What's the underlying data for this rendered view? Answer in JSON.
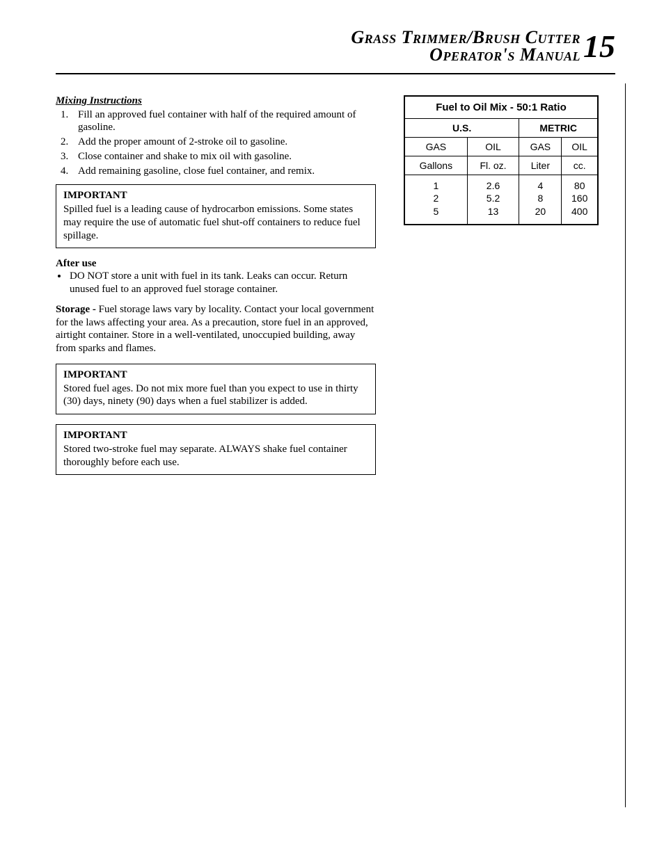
{
  "header": {
    "line1": "Grass Trimmer/Brush Cutter",
    "line2": "Operator's Manual",
    "page_number": "15"
  },
  "mixing": {
    "title": "Mixing Instructions ",
    "steps": [
      "Fill an approved fuel container with half of the required amount of gasoline.",
      "Add the proper amount of 2-stroke oil to gasoline.",
      "Close container and shake to mix oil with gasoline.",
      "Add remaining gasoline,  close fuel container, and remix."
    ]
  },
  "important1": {
    "title": "IMPORTANT",
    "body": "Spilled fuel is a leading cause of hydrocarbon emissions. Some states may require the use of automatic fuel shut-off containers to reduce fuel spillage."
  },
  "after_use": {
    "title": "After use",
    "bullet": "DO NOT store a unit with fuel in its tank. Leaks can occur. Return unused fuel to an approved fuel storage container."
  },
  "storage": {
    "lead": "Storage - ",
    "body": "Fuel storage laws vary by locality. Contact your local government for the laws affecting your area. As a precaution, store fuel in an approved, airtight container. Store in a well-ventilated, unoccupied building, away from sparks and flames."
  },
  "important2": {
    "title": "IMPORTANT",
    "body": "Stored fuel ages. Do not mix more fuel than you expect to use in thirty (30) days, ninety (90) days when a fuel stabilizer is added."
  },
  "important3": {
    "title": "IMPORTANT",
    "body": "Stored two-stroke fuel may separate. ALWAYS shake fuel container thoroughly before each use."
  },
  "fuel_table": {
    "title": "Fuel to Oil Mix - 50:1 Ratio",
    "us_label": "U.S.",
    "metric_label": "METRIC",
    "columns": {
      "us_gas": "GAS",
      "us_oil": "OIL",
      "m_gas": "GAS",
      "m_oil": "OIL"
    },
    "units": {
      "us_gas": "Gallons",
      "us_oil": "Fl. oz.",
      "m_gas": "Liter",
      "m_oil": "cc."
    },
    "rows": {
      "us_gas_vals": "1\n2\n5",
      "us_oil_vals": "2.6\n5.2\n13",
      "m_gas_vals": "4\n8\n20",
      "m_oil_vals": "80\n160\n400"
    }
  }
}
